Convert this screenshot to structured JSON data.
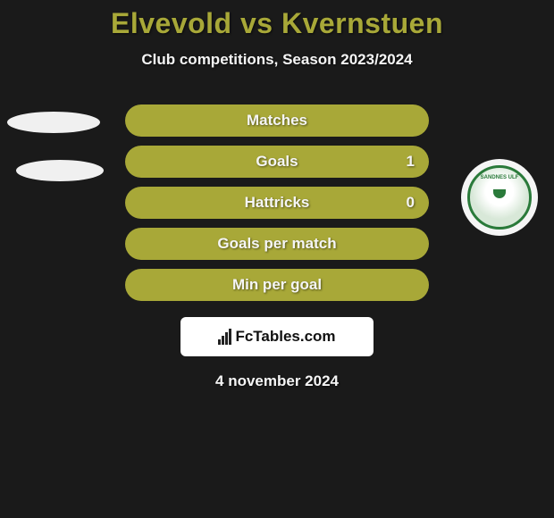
{
  "title": "Elvevold vs Kvernstuen",
  "subtitle": "Club competitions, Season 2023/2024",
  "date": "4 november 2024",
  "fctables": "FcTables.com",
  "colors": {
    "background": "#1a1a1a",
    "accent": "#a8a838",
    "title": "#a8a838",
    "text": "#f5f5f5",
    "logo_green": "#2a7a3a"
  },
  "logo": {
    "text": "SANDNES ULF"
  },
  "rows": [
    {
      "label": "Matches",
      "value_right": ""
    },
    {
      "label": "Goals",
      "value_right": "1"
    },
    {
      "label": "Hattricks",
      "value_right": "0"
    },
    {
      "label": "Goals per match",
      "value_right": ""
    },
    {
      "label": "Min per goal",
      "value_right": ""
    }
  ]
}
